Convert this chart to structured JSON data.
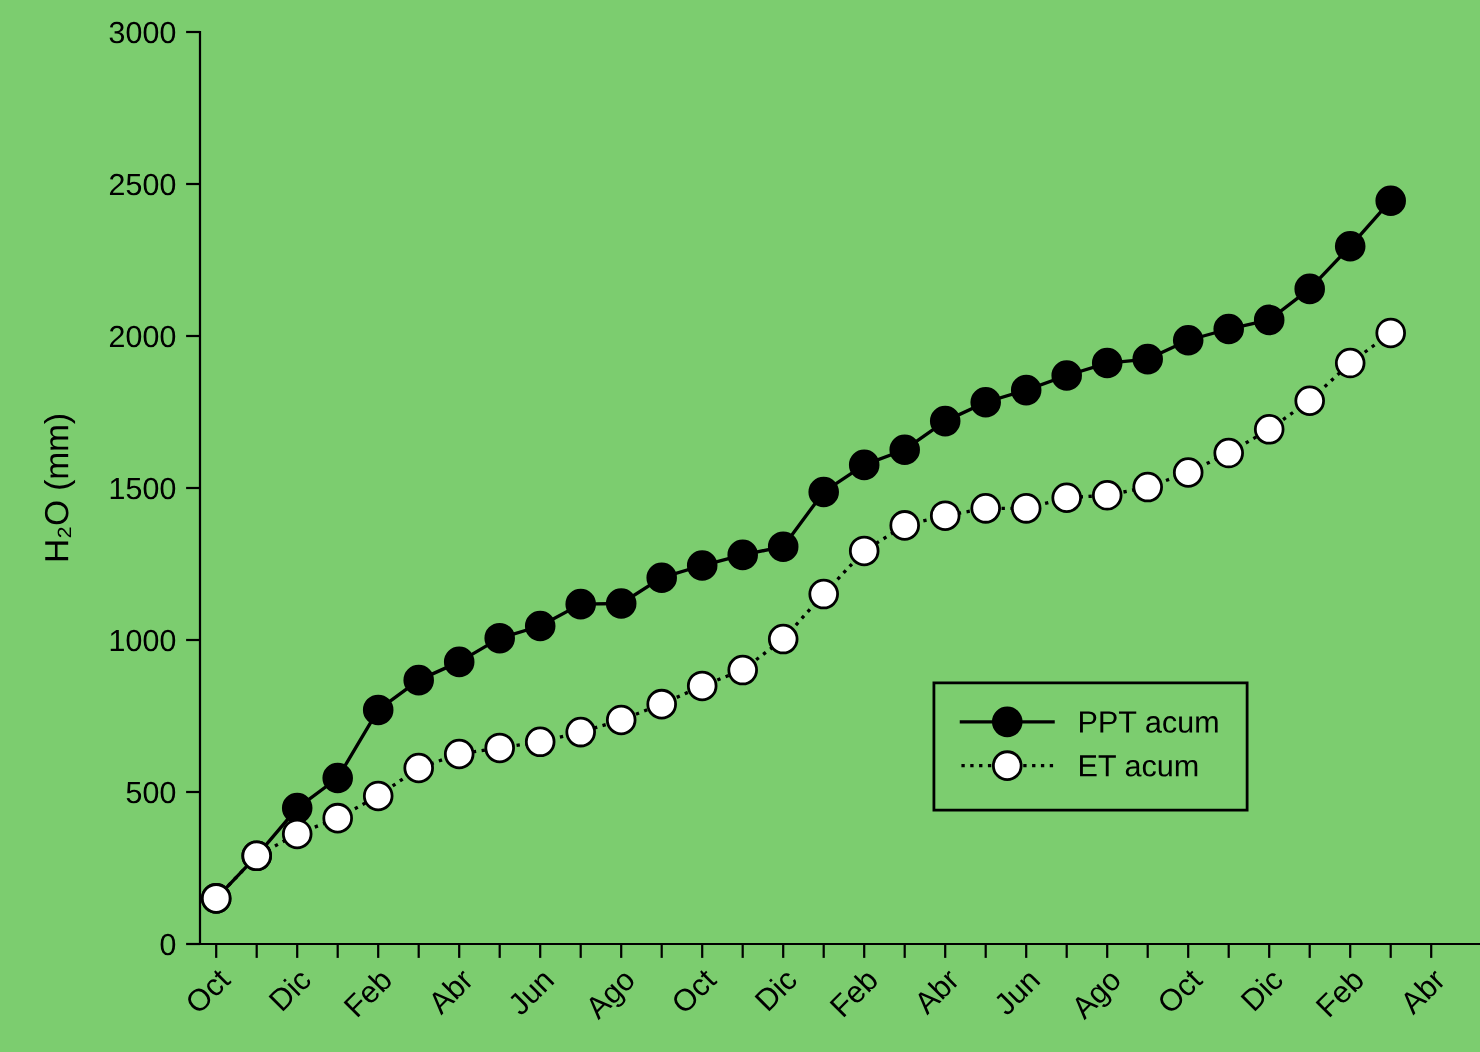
{
  "chart_data": {
    "type": "line",
    "ylabel": "H₂O (mm)",
    "categories": [
      "Oct",
      null,
      "Dic",
      null,
      "Feb",
      null,
      "Abr",
      null,
      "Jun",
      null,
      "Ago",
      null,
      "Oct",
      null,
      "Dic",
      null,
      "Feb",
      null,
      "Abr",
      null,
      "Jun",
      null,
      "Ago",
      null,
      "Oct",
      null,
      "Dic",
      null,
      "Feb",
      null,
      "Abr"
    ],
    "series": [
      {
        "name": "PPT acum",
        "color": "#000000",
        "marker": "circle",
        "line_style": "solid",
        "values": [
          150,
          290,
          447,
          546,
          770,
          868,
          928,
          1006,
          1046,
          1118,
          1120,
          1205,
          1245,
          1280,
          1307,
          1487,
          1576,
          1626,
          1720,
          1782,
          1822,
          1870,
          1911,
          1924,
          1986,
          2023,
          2053,
          2155,
          2295,
          2445,
          null
        ]
      },
      {
        "name": "ET acum",
        "color": "#000000",
        "marker": "circle",
        "line_style": "dotted",
        "values": [
          150,
          290,
          362,
          414,
          487,
          579,
          625,
          645,
          665,
          697,
          737,
          789,
          849,
          901,
          1003,
          1151,
          1293,
          1377,
          1409,
          1433,
          1433,
          1468,
          1476,
          1503,
          1551,
          1615,
          1693,
          1787,
          1911,
          2010,
          null
        ]
      }
    ],
    "ylim": [
      0,
      3000
    ],
    "yticks": [
      0,
      500,
      1000,
      1500,
      2000,
      2500,
      3000
    ],
    "grid": false,
    "legend": "lower right"
  }
}
